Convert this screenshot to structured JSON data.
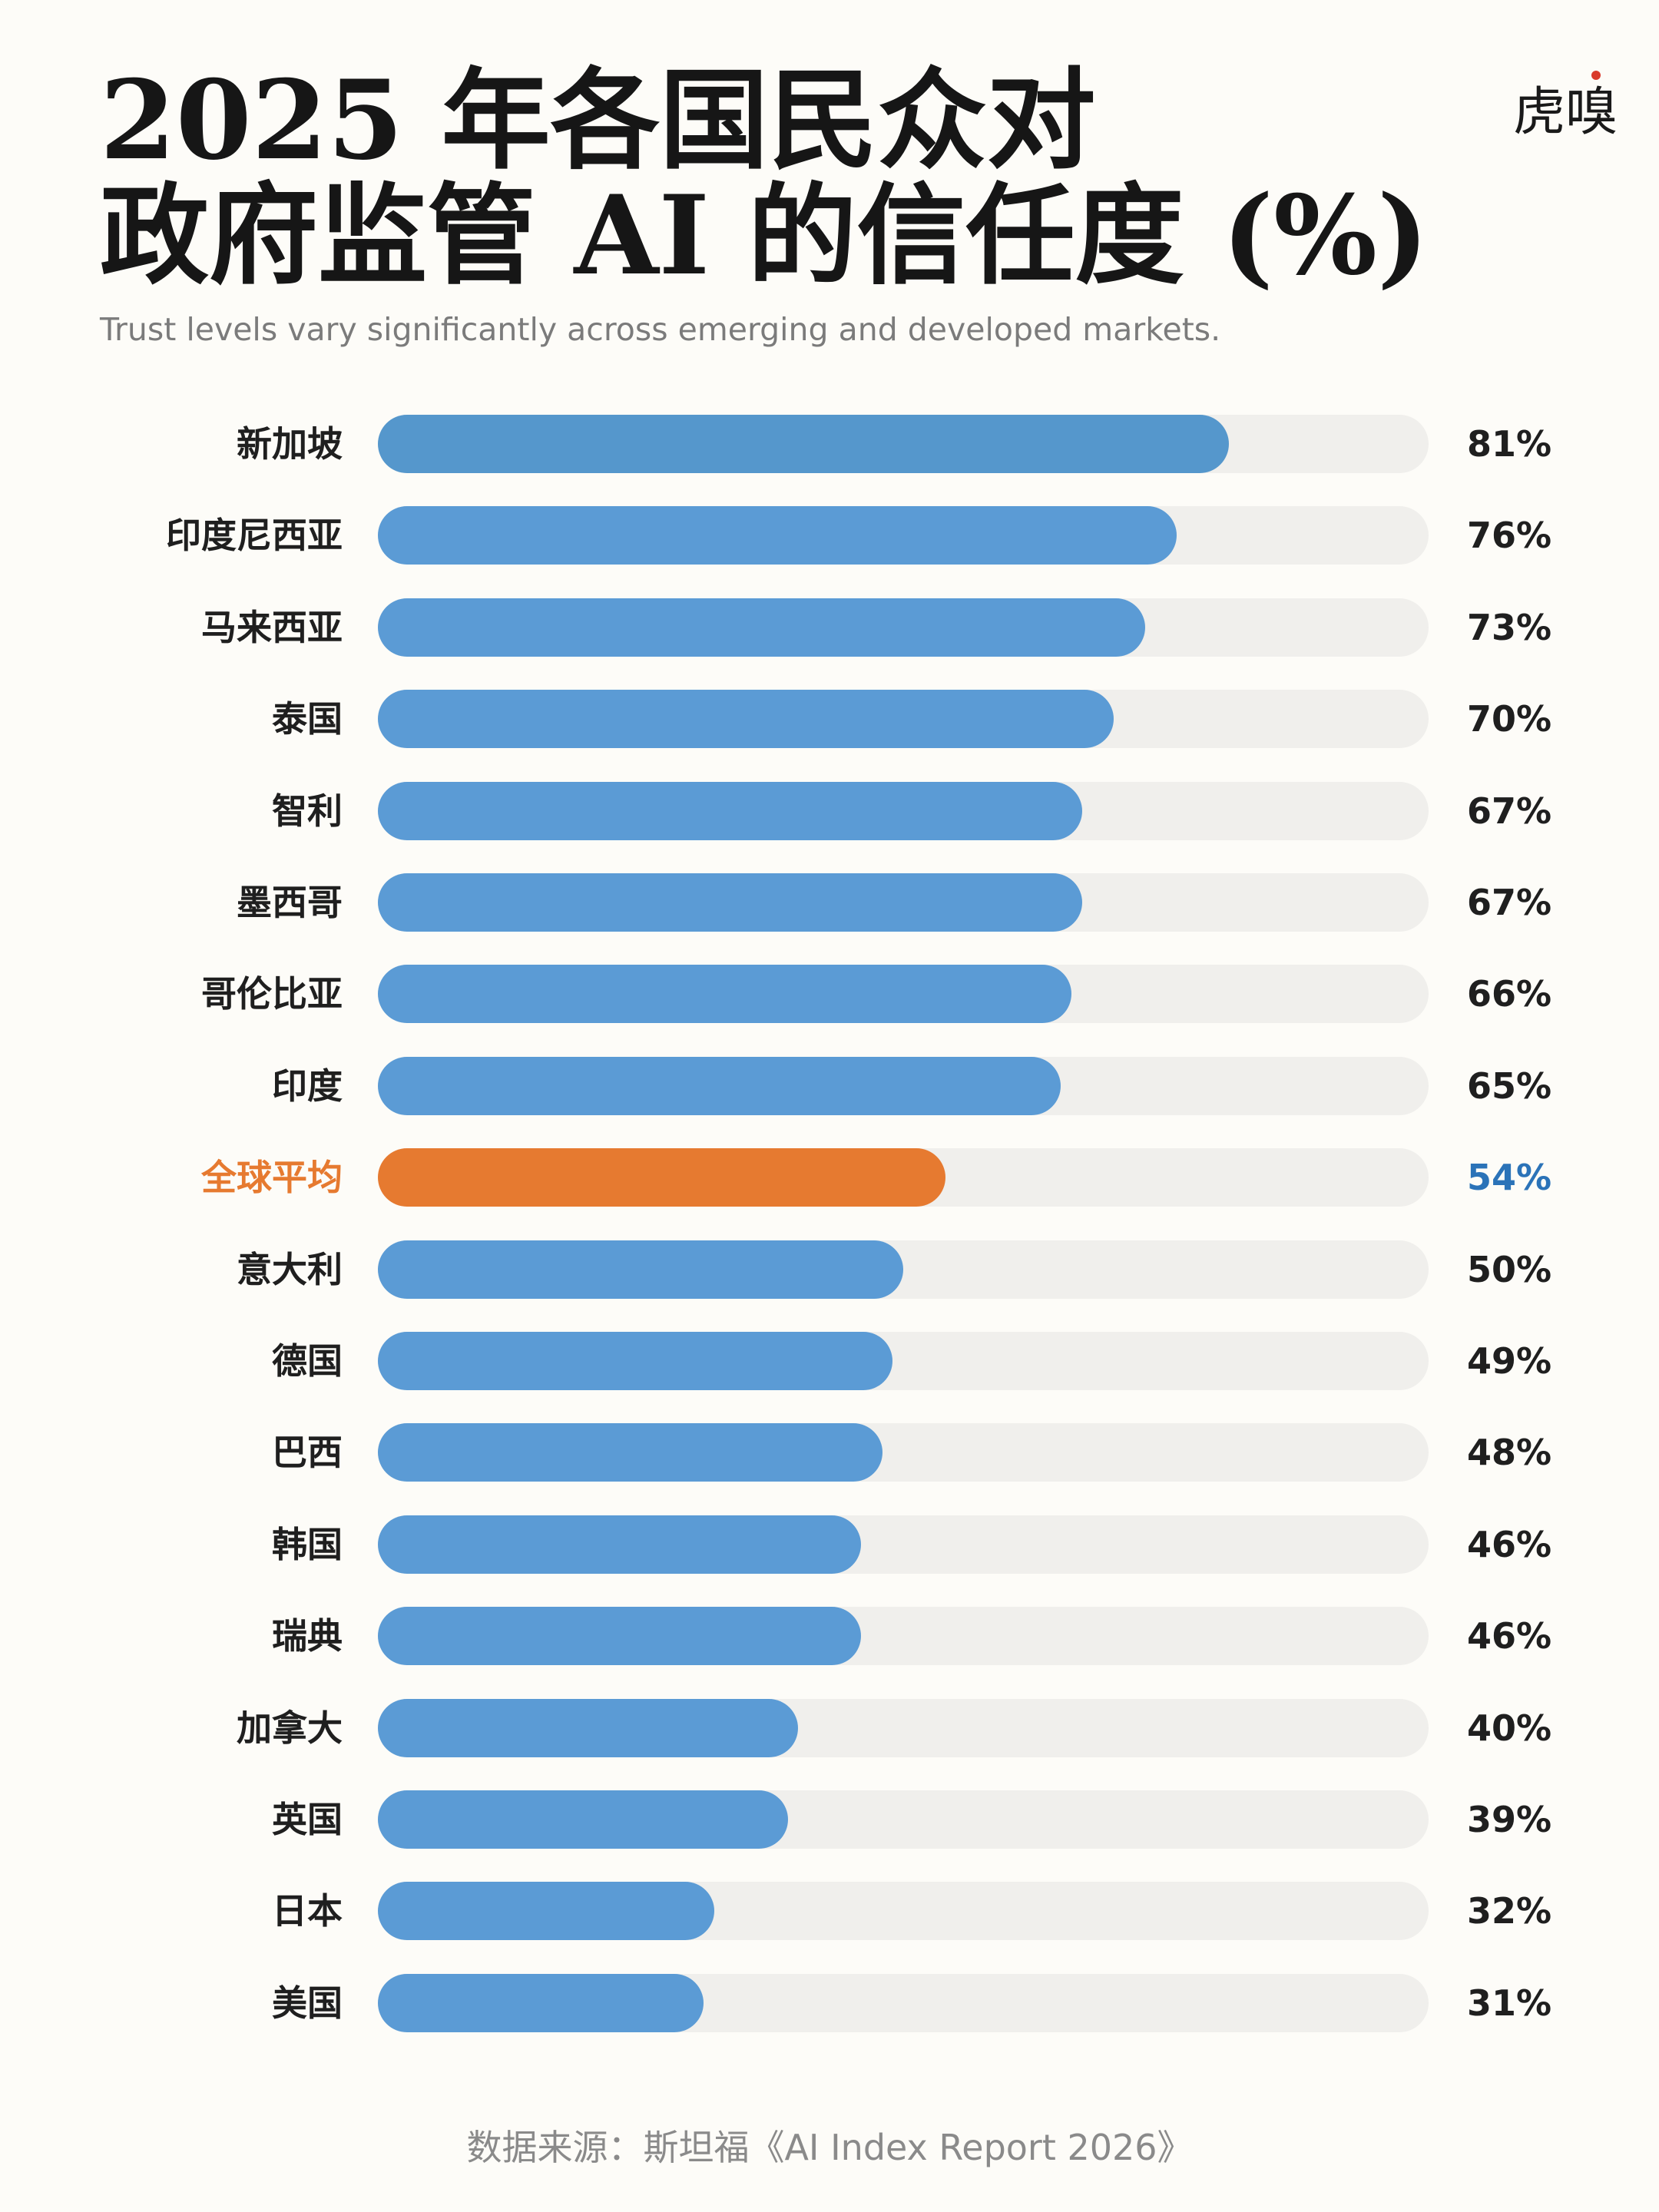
{
  "title": {
    "line1": "2025 年各国民众对",
    "line2": "政府监管 AI 的信任度 (%)"
  },
  "subtitle": "Trust levels vary significantly across emerging and developed markets.",
  "logo": {
    "text": "虎嗅",
    "dot_color": "#d93a2b"
  },
  "source": "数据来源：斯坦福《AI Index Report 2026》",
  "colors": {
    "bar": "#5b9bd5",
    "bar_top": "#5597cc",
    "highlight_bar": "#e67a30",
    "highlight_label": "#e67a30",
    "highlight_value": "#2b73b8",
    "track": "#f0efec",
    "text": "#1f1f1f"
  },
  "chart_data": {
    "type": "bar",
    "orientation": "horizontal",
    "xlim": [
      0,
      100
    ],
    "categories": [
      "新加坡",
      "印度尼西亚",
      "马来西亚",
      "泰国",
      "智利",
      "墨西哥",
      "哥伦比亚",
      "印度",
      "全球平均",
      "意大利",
      "德国",
      "巴西",
      "韩国",
      "瑞典",
      "加拿大",
      "英国",
      "日本",
      "美国"
    ],
    "values": [
      81,
      76,
      73,
      70,
      67,
      67,
      66,
      65,
      54,
      50,
      49,
      48,
      46,
      46,
      40,
      39,
      32,
      31
    ],
    "value_labels": [
      "81%",
      "76%",
      "73%",
      "70%",
      "67%",
      "67%",
      "66%",
      "65%",
      "54%",
      "50%",
      "49%",
      "48%",
      "46%",
      "46%",
      "40%",
      "39%",
      "32%",
      "31%"
    ],
    "highlight_category": "全球平均"
  }
}
